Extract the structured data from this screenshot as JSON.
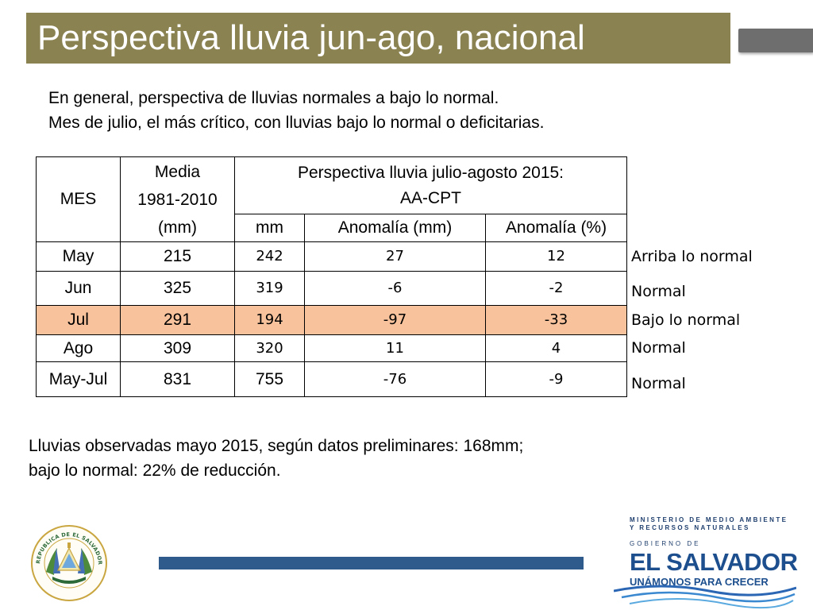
{
  "title": "Perspectiva lluvia jun-ago, nacional",
  "intro": [
    "En general, perspectiva de lluvias normales a bajo lo normal.",
    "Mes de julio, el más crítico, con lluvias bajo lo normal o deficitarias."
  ],
  "table": {
    "head_mes": "MES",
    "head_media": [
      "Media",
      "1981-2010",
      "(mm)"
    ],
    "head_persp": [
      "Perspectiva lluvia julio-agosto 2015:",
      "AA-CPT"
    ],
    "head_mm": "mm",
    "head_anom_mm": "Anomalía (mm)",
    "head_anom_pct": "Anomalía (%)",
    "rows": [
      {
        "mes": "May",
        "media": "215",
        "mm": "242",
        "anom_mm": "27",
        "anom_pct": "12",
        "label": "Arriba lo normal"
      },
      {
        "mes": "Jun",
        "media": "325",
        "mm": "319",
        "anom_mm": "-6",
        "anom_pct": "-2",
        "label": "Normal"
      },
      {
        "mes": "Jul",
        "media": "291",
        "mm": "194",
        "anom_mm": "-97",
        "anom_pct": "-33",
        "label": "Bajo lo normal"
      },
      {
        "mes": "Ago",
        "media": "309",
        "mm": "320",
        "anom_mm": "11",
        "anom_pct": "4",
        "label": "Normal"
      },
      {
        "mes": "May-Jul",
        "media": "831",
        "mm": "755",
        "anom_mm": "-76",
        "anom_pct": "-9",
        "label": "Normal"
      }
    ]
  },
  "observaciones": [
    "Lluvias observadas mayo 2015, según datos preliminares: 168mm;",
    "bajo lo normal: 22% de reducción."
  ],
  "seal": {
    "top_text": "REPUBLICA DE EL SALVADOR EN LA AMERICA CENTRAL"
  },
  "branding": {
    "ministry": "MINISTERIO DE MEDIO AMBIENTE Y RECURSOS NATURALES",
    "gobierno": "GOBIERNO DE",
    "country": "EL SALVADOR",
    "slogan": "UNÁMONOS PARA CRECER"
  },
  "colors": {
    "title_bar": "#8a8251",
    "highlight_row": "#f8c39c",
    "accent_blue": "#2e5a8c"
  }
}
